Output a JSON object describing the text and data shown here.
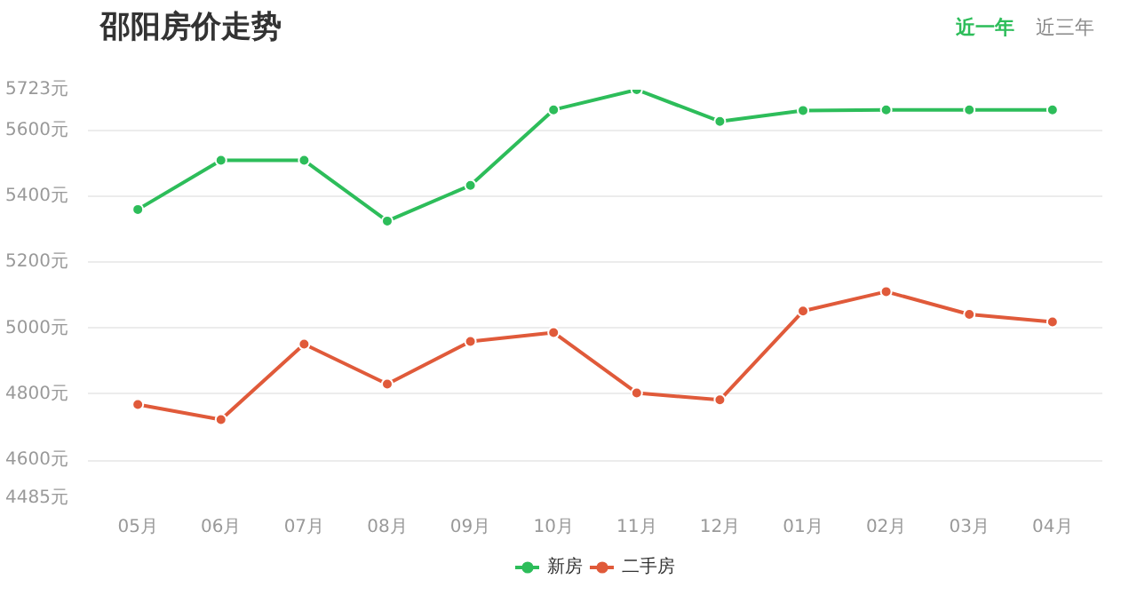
{
  "chart_data": {
    "type": "line",
    "title": "邵阳房价走势",
    "annotations": [
      "近一年",
      "近三年"
    ],
    "categories": [
      "05月",
      "06月",
      "07月",
      "08月",
      "09月",
      "10月",
      "11月",
      "12月",
      "01月",
      "02月",
      "03月",
      "04月"
    ],
    "series": [
      {
        "name": "新房",
        "color": "#2dbd5a",
        "values": [
          5360,
          5509,
          5509,
          5325,
          5433,
          5662,
          5723,
          5627,
          5660,
          5662,
          5662,
          5662
        ]
      },
      {
        "name": "二手房",
        "color": "#e05a3a",
        "values": [
          4769,
          4723,
          4952,
          4831,
          4960,
          4987,
          4804,
          4783,
          5052,
          5111,
          5042,
          5019
        ]
      }
    ],
    "ylim": [
      4485,
      5723
    ],
    "yticks": [
      {
        "value": 4485,
        "label": "4485元"
      },
      {
        "value": 4600,
        "label": "4600元"
      },
      {
        "value": 4800,
        "label": "4800元"
      },
      {
        "value": 5000,
        "label": "5000元"
      },
      {
        "value": 5200,
        "label": "5200元"
      },
      {
        "value": 5400,
        "label": "5400元"
      },
      {
        "value": 5600,
        "label": "5600元"
      },
      {
        "value": 5723,
        "label": "5723元"
      }
    ],
    "grid": "y",
    "legend": "bottom",
    "marker": "circle",
    "line_style": "solid"
  }
}
